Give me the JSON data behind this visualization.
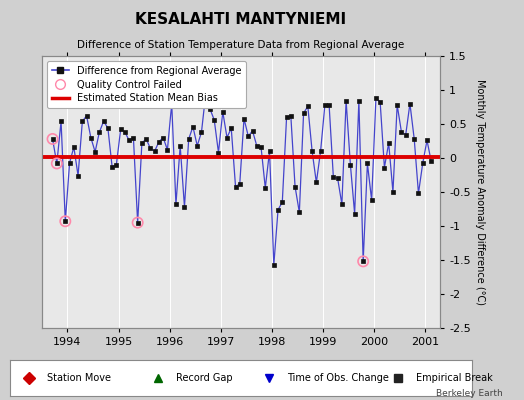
{
  "title": "KESALAHTI MANTYNIEMI",
  "subtitle": "Difference of Station Temperature Data from Regional Average",
  "ylabel": "Monthly Temperature Anomaly Difference (°C)",
  "bias": 0.02,
  "ylim": [
    -2.5,
    1.5
  ],
  "xlim": [
    1993.5,
    2001.3
  ],
  "xticks": [
    1994,
    1995,
    1996,
    1997,
    1998,
    1999,
    2000,
    2001
  ],
  "yticks": [
    -2.5,
    -2.0,
    -1.5,
    -1.0,
    -0.5,
    0.0,
    0.5,
    1.0,
    1.5
  ],
  "yticklabels": [
    "-2.5",
    "-2",
    "-1.5",
    "-1",
    "-0.5",
    "0",
    "0.5",
    "1",
    "1.5"
  ],
  "background_color": "#e8e8e8",
  "fig_color": "#d0d0d0",
  "line_color": "#4444cc",
  "marker_color": "#111111",
  "bias_color": "#dd0000",
  "qc_color": "#ff88aa",
  "watermark": "Berkeley Earth",
  "data": [
    [
      1993.708,
      0.28
    ],
    [
      1993.792,
      -0.08
    ],
    [
      1993.875,
      0.54
    ],
    [
      1993.958,
      -0.93
    ],
    [
      1994.042,
      -0.07
    ],
    [
      1994.125,
      0.16
    ],
    [
      1994.208,
      -0.26
    ],
    [
      1994.292,
      0.54
    ],
    [
      1994.375,
      0.62
    ],
    [
      1994.458,
      0.3
    ],
    [
      1994.542,
      0.09
    ],
    [
      1994.625,
      0.38
    ],
    [
      1994.708,
      0.54
    ],
    [
      1994.792,
      0.44
    ],
    [
      1994.875,
      -0.13
    ],
    [
      1994.958,
      -0.1
    ],
    [
      1995.042,
      0.42
    ],
    [
      1995.125,
      0.38
    ],
    [
      1995.208,
      0.26
    ],
    [
      1995.292,
      0.3
    ],
    [
      1995.375,
      -0.95
    ],
    [
      1995.458,
      0.22
    ],
    [
      1995.542,
      0.28
    ],
    [
      1995.625,
      0.14
    ],
    [
      1995.708,
      0.1
    ],
    [
      1995.792,
      0.24
    ],
    [
      1995.875,
      0.3
    ],
    [
      1995.958,
      0.12
    ],
    [
      1996.042,
      0.8
    ],
    [
      1996.125,
      -0.68
    ],
    [
      1996.208,
      0.18
    ],
    [
      1996.292,
      -0.72
    ],
    [
      1996.375,
      0.28
    ],
    [
      1996.458,
      0.46
    ],
    [
      1996.542,
      0.18
    ],
    [
      1996.625,
      0.38
    ],
    [
      1996.708,
      0.94
    ],
    [
      1996.792,
      0.72
    ],
    [
      1996.875,
      0.56
    ],
    [
      1996.958,
      0.08
    ],
    [
      1997.042,
      0.68
    ],
    [
      1997.125,
      0.3
    ],
    [
      1997.208,
      0.44
    ],
    [
      1997.292,
      -0.42
    ],
    [
      1997.375,
      -0.38
    ],
    [
      1997.458,
      0.58
    ],
    [
      1997.542,
      0.32
    ],
    [
      1997.625,
      0.4
    ],
    [
      1997.708,
      0.18
    ],
    [
      1997.792,
      0.16
    ],
    [
      1997.875,
      -0.44
    ],
    [
      1997.958,
      0.1
    ],
    [
      1998.042,
      -1.57
    ],
    [
      1998.125,
      -0.76
    ],
    [
      1998.208,
      -0.65
    ],
    [
      1998.292,
      0.6
    ],
    [
      1998.375,
      0.62
    ],
    [
      1998.458,
      -0.42
    ],
    [
      1998.542,
      -0.8
    ],
    [
      1998.625,
      0.66
    ],
    [
      1998.708,
      0.76
    ],
    [
      1998.792,
      0.1
    ],
    [
      1998.875,
      -0.36
    ],
    [
      1998.958,
      0.1
    ],
    [
      1999.042,
      0.78
    ],
    [
      1999.125,
      0.78
    ],
    [
      1999.208,
      -0.28
    ],
    [
      1999.292,
      -0.3
    ],
    [
      1999.375,
      -0.68
    ],
    [
      1999.458,
      0.84
    ],
    [
      1999.542,
      -0.1
    ],
    [
      1999.625,
      -0.82
    ],
    [
      1999.708,
      0.84
    ],
    [
      1999.792,
      -1.52
    ],
    [
      1999.875,
      -0.08
    ],
    [
      1999.958,
      -0.62
    ],
    [
      2000.042,
      0.88
    ],
    [
      2000.125,
      0.82
    ],
    [
      2000.208,
      -0.14
    ],
    [
      2000.292,
      0.22
    ],
    [
      2000.375,
      -0.5
    ],
    [
      2000.458,
      0.78
    ],
    [
      2000.542,
      0.38
    ],
    [
      2000.625,
      0.34
    ],
    [
      2000.708,
      0.8
    ],
    [
      2000.792,
      0.28
    ],
    [
      2000.875,
      -0.52
    ],
    [
      2000.958,
      -0.08
    ],
    [
      2001.042,
      0.26
    ],
    [
      2001.125,
      -0.05
    ]
  ],
  "qc_failed": [
    [
      1993.708,
      0.28
    ],
    [
      1993.792,
      -0.08
    ],
    [
      1993.958,
      -0.93
    ],
    [
      1995.375,
      -0.95
    ],
    [
      1999.792,
      -1.52
    ]
  ]
}
